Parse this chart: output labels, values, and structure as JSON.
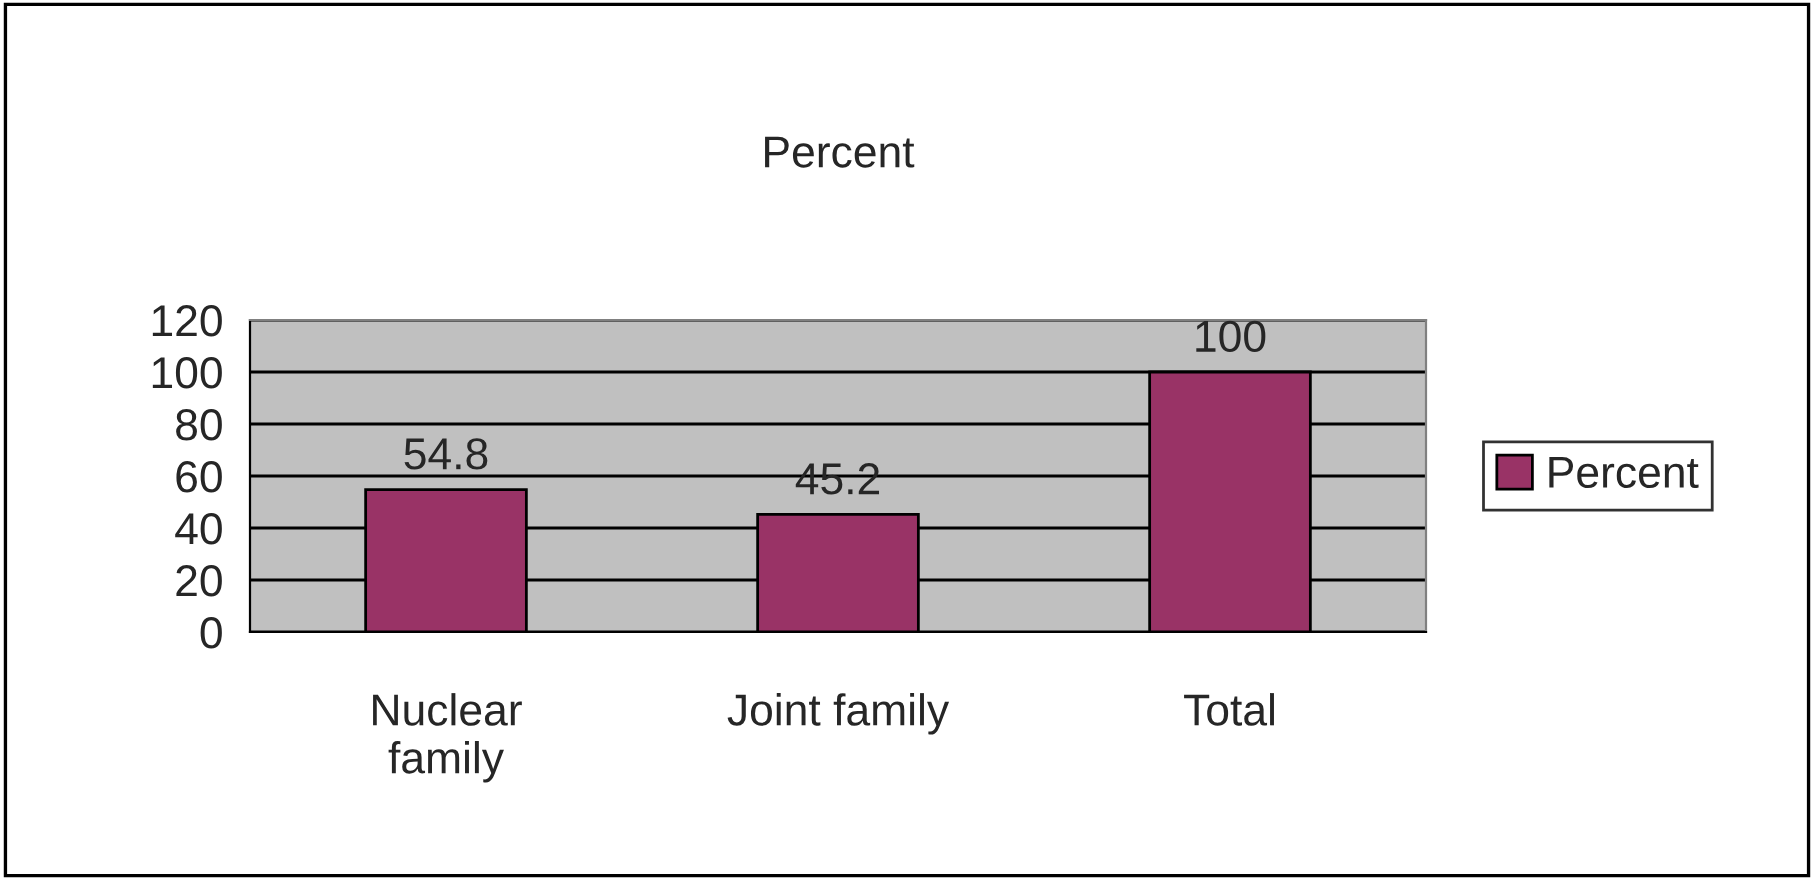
{
  "chart_data": {
    "type": "bar",
    "title": "Percent",
    "categories": [
      "Nuclear\nfamily",
      "Joint family",
      "Total"
    ],
    "series": [
      {
        "name": "Percent",
        "color": "#993366",
        "values": [
          54.8,
          45.2,
          100
        ]
      }
    ],
    "ylim": [
      0,
      120
    ],
    "yticks": [
      0,
      20,
      40,
      60,
      80,
      100,
      120
    ],
    "grid": "y",
    "legend": "right",
    "data_labels": true
  }
}
